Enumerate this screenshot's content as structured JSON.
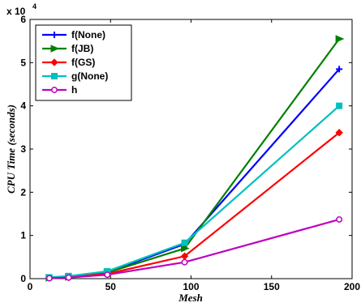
{
  "chart_data": {
    "type": "line",
    "title": "",
    "xlabel": "Mesh",
    "ylabel": "CPU Time (seconds)",
    "xlim": [
      0,
      200
    ],
    "ylim": [
      0,
      60000
    ],
    "x_ticks": [
      "0",
      "50",
      "100",
      "150",
      "200"
    ],
    "y_ticks": [
      "0",
      "1",
      "2",
      "3",
      "4",
      "5",
      "6"
    ],
    "y_multiplier": "x 10",
    "y_multiplier_exp": "4",
    "grid": false,
    "legend_position": "top-left",
    "x": [
      12,
      24,
      48,
      96,
      192
    ],
    "series": [
      {
        "name": "f(None)",
        "color": "#0000ff",
        "marker": "plus",
        "values": [
          250,
          500,
          1500,
          8000,
          48500
        ]
      },
      {
        "name": "f(JB)",
        "color": "#008000",
        "marker": "triangle",
        "values": [
          200,
          400,
          1400,
          7000,
          55500
        ]
      },
      {
        "name": "f(GS)",
        "color": "#ff0000",
        "marker": "diamond",
        "values": [
          150,
          300,
          1100,
          5200,
          33800
        ]
      },
      {
        "name": "g(None)",
        "color": "#00bfbf",
        "marker": "square",
        "values": [
          300,
          600,
          1700,
          8300,
          40000
        ]
      },
      {
        "name": "h",
        "color": "#bf00bf",
        "marker": "circle",
        "values": [
          100,
          250,
          900,
          3800,
          13700
        ]
      }
    ]
  }
}
